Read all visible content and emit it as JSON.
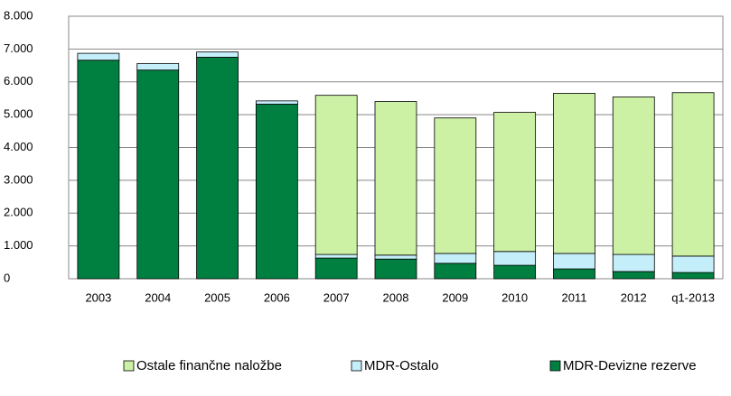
{
  "chart_data": {
    "type": "stacked_bar",
    "categories": [
      "2003",
      "2004",
      "2005",
      "2006",
      "2007",
      "2008",
      "2009",
      "2010",
      "2011",
      "2012",
      "q1-2013"
    ],
    "series": [
      {
        "name": "Ostale finančne naložbe",
        "color": "#ccf0a4",
        "values": [
          0,
          0,
          0,
          0,
          4850,
          4680,
          4130,
          4240,
          4880,
          4800,
          4980
        ]
      },
      {
        "name": "MDR-Ostalo",
        "color": "#c4eefa",
        "values": [
          210,
          200,
          160,
          100,
          110,
          120,
          300,
          420,
          470,
          520,
          500
        ]
      },
      {
        "name": "MDR-Devizne rezerve",
        "color": "#008040",
        "values": [
          6660,
          6360,
          6750,
          5320,
          630,
          600,
          470,
          410,
          300,
          220,
          190
        ]
      }
    ],
    "ylim": [
      0,
      8000
    ],
    "yticks": [
      0,
      {
        "value": 1000,
        "label": "1.000"
      },
      {
        "value": 2000,
        "label": "2.000"
      },
      {
        "value": 3000,
        "label": "3.000"
      },
      {
        "value": 4000,
        "label": "4.000"
      },
      {
        "value": 5000,
        "label": "5.000"
      },
      {
        "value": 6000,
        "label": "6.000"
      },
      {
        "value": 7000,
        "label": "7.000"
      },
      {
        "value": 8000,
        "label": "8.000"
      }
    ],
    "grid": true,
    "legend": "bottom"
  }
}
